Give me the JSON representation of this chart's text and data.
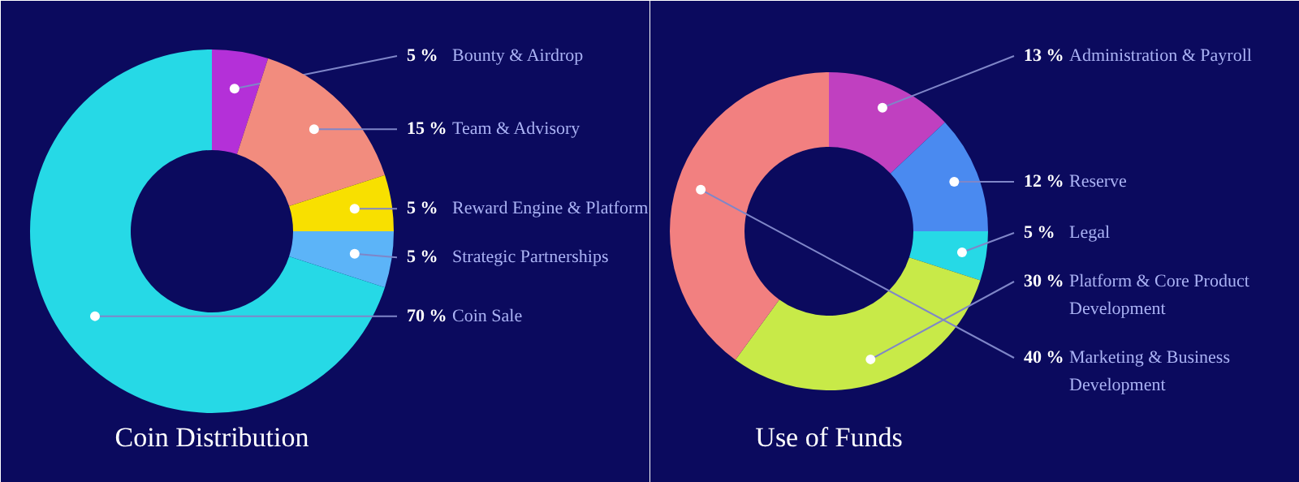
{
  "chart_data": [
    {
      "type": "donut",
      "title": "Coin Distribution",
      "categories": [
        "Bounty & Airdrop",
        "Team & Advisory",
        "Reward Engine & Platform",
        "Strategic Partnerships",
        "Coin Sale"
      ],
      "values": [
        5,
        15,
        5,
        5,
        70
      ],
      "colors": [
        "#b430d8",
        "#f28c7e",
        "#f8e000",
        "#5cb4f8",
        "#26d9e6"
      ],
      "value_labels": [
        "5 %",
        "15 %",
        "5 %",
        "5 %",
        "70 %"
      ]
    },
    {
      "type": "donut",
      "title": "Use of Funds",
      "categories": [
        "Administration & Payroll",
        "Reserve",
        "Legal",
        "Platform & Core Product Development",
        "Marketing & Business Development"
      ],
      "values": [
        13,
        12,
        5,
        30,
        40
      ],
      "colors": [
        "#c040c0",
        "#4a8af0",
        "#26d9e6",
        "#c8ea48",
        "#f28080"
      ],
      "value_labels": [
        "13 %",
        "12 %",
        "5 %",
        "30 %",
        "40 %"
      ]
    }
  ]
}
